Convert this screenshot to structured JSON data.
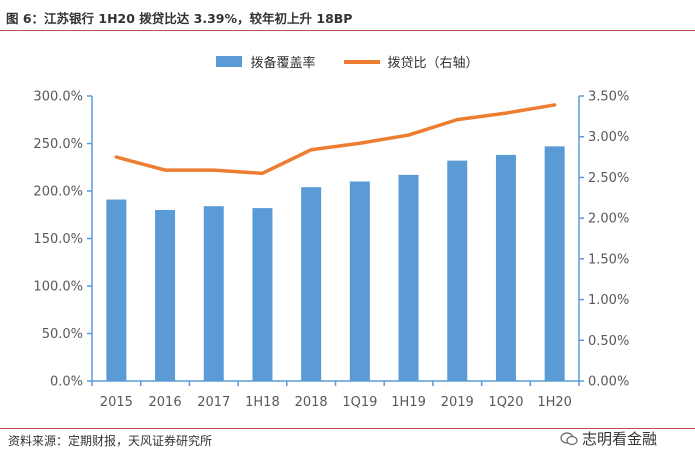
{
  "header": {
    "title": "图 6：江苏银行 1H20 拨贷比达 3.39%，较年初上升 18BP"
  },
  "footer": {
    "source": "资料来源：定期财报，天风证券研究所",
    "watermark": "志明看金融"
  },
  "colors": {
    "bar": "#5b9bd5",
    "line": "#ed7d31",
    "axis": "#5b9bd5",
    "frame": "#c0504d",
    "text": "#595959"
  },
  "chart_data": {
    "type": "bar",
    "categories": [
      "2015",
      "2016",
      "2017",
      "1H18",
      "2018",
      "1Q19",
      "1H19",
      "2019",
      "1Q20",
      "1H20"
    ],
    "series": [
      {
        "name": "拨备覆盖率",
        "type": "bar",
        "axis": "left",
        "values": [
          191,
          180,
          184,
          182,
          204,
          210,
          217,
          232,
          238,
          247
        ]
      },
      {
        "name": "拨贷比（右轴）",
        "type": "line",
        "axis": "right",
        "values": [
          2.75,
          2.59,
          2.59,
          2.55,
          2.84,
          2.92,
          3.02,
          3.21,
          3.29,
          3.39
        ]
      }
    ],
    "ylim_left": [
      0,
      300
    ],
    "yticks_left": [
      "0.0%",
      "50.0%",
      "100.0%",
      "150.0%",
      "200.0%",
      "250.0%",
      "300.0%"
    ],
    "ylim_right": [
      0,
      3.5
    ],
    "yticks_right": [
      "0.00%",
      "0.50%",
      "1.00%",
      "1.50%",
      "2.00%",
      "2.50%",
      "3.00%",
      "3.50%"
    ],
    "legend": [
      "拨备覆盖率",
      "拨贷比（右轴）"
    ],
    "legend_position": "top-center"
  }
}
